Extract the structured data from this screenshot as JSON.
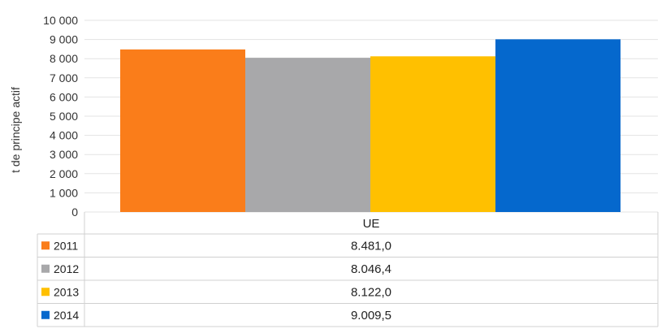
{
  "chart_data": {
    "type": "bar",
    "categories": [
      "UE"
    ],
    "series": [
      {
        "name": "2011",
        "values": [
          8481.0
        ],
        "color": "#FA7D1A",
        "display": "8.481,0"
      },
      {
        "name": "2012",
        "values": [
          8046.4
        ],
        "color": "#A8A8AA",
        "display": "8.046,4"
      },
      {
        "name": "2013",
        "values": [
          8122.0
        ],
        "color": "#FFC000",
        "display": "8.122,0"
      },
      {
        "name": "2014",
        "values": [
          9009.5
        ],
        "color": "#0568CD",
        "display": "9.009,5"
      }
    ],
    "ylabel": "t de principe actif",
    "ylim": [
      0,
      10000
    ],
    "yticks": [
      0,
      1000,
      2000,
      3000,
      4000,
      5000,
      6000,
      7000,
      8000,
      9000,
      10000
    ],
    "ytick_labels": [
      "0",
      "1 000",
      "2 000",
      "3 000",
      "4 000",
      "5 000",
      "6 000",
      "7 000",
      "8 000",
      "9 000",
      "10 000"
    ],
    "grid": true,
    "legend": "data-table"
  }
}
